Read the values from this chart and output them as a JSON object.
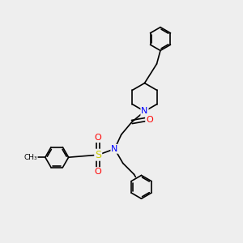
{
  "bg_color": "#eeeeee",
  "bond_color": "#000000",
  "bond_width": 1.2,
  "atom_colors": {
    "N": "#0000ff",
    "O": "#ff0000",
    "S": "#cccc00",
    "C": "#000000"
  },
  "font_size_atom": 8,
  "ring_r": 0.48,
  "pip_r": 0.58
}
